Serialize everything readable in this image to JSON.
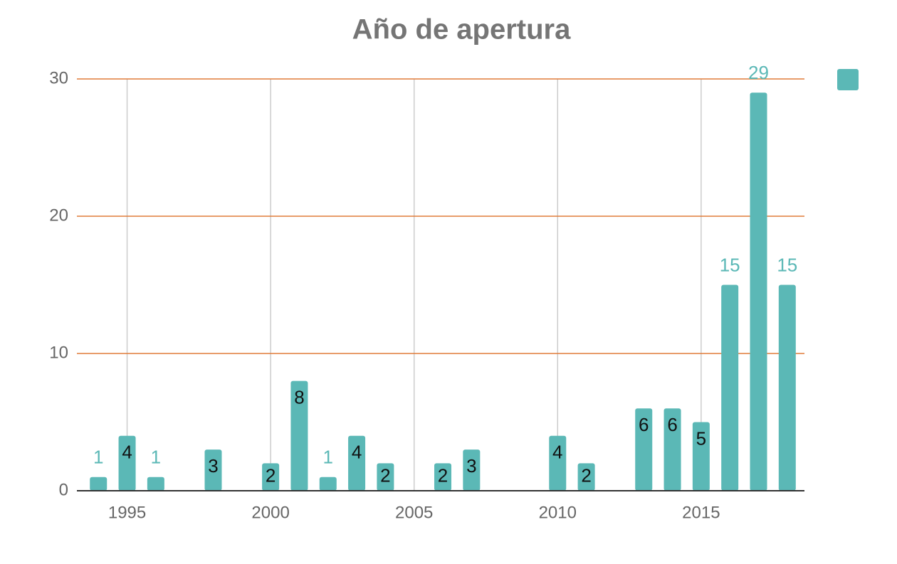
{
  "chart_data": {
    "type": "bar",
    "title": "Año de apertura",
    "x": [
      1994,
      1995,
      1996,
      1998,
      2000,
      2001,
      2002,
      2003,
      2004,
      2006,
      2007,
      2010,
      2011,
      2013,
      2014,
      2015,
      2016,
      2017,
      2018
    ],
    "values": [
      1,
      4,
      1,
      3,
      2,
      8,
      1,
      4,
      2,
      2,
      3,
      4,
      2,
      6,
      6,
      5,
      15,
      29,
      15
    ],
    "color": "#5bb8b6",
    "xlim": [
      1993.25,
      2018.6
    ],
    "xticks": [
      1995,
      2000,
      2005,
      2010,
      2015
    ],
    "ylim": [
      0,
      30
    ],
    "yticks": [
      0,
      10,
      20,
      30
    ],
    "grid": true
  }
}
